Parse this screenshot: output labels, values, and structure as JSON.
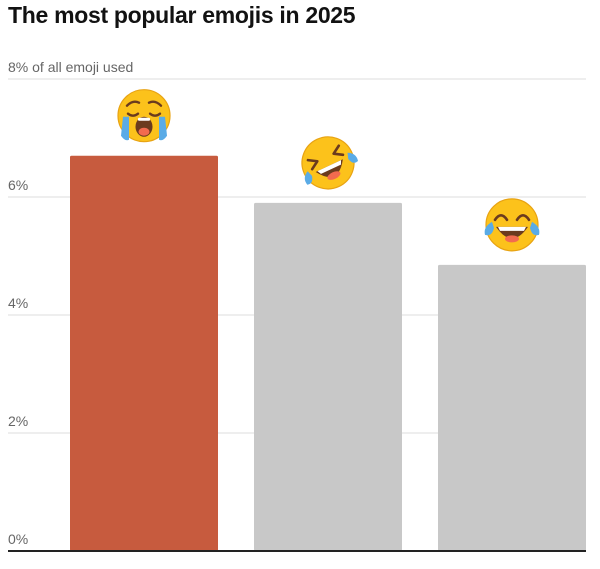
{
  "chart_data": {
    "type": "bar",
    "title": "The most popular emojis in 2025",
    "xlabel": "",
    "ylabel": "",
    "ylim": [
      0,
      8
    ],
    "y_ticks": [
      {
        "value": 0,
        "label": "0%"
      },
      {
        "value": 2,
        "label": "2%"
      },
      {
        "value": 4,
        "label": "4%"
      },
      {
        "value": 6,
        "label": "6%"
      },
      {
        "value": 8,
        "label": "8% of all emoji used"
      }
    ],
    "grid": true,
    "categories": [
      "loudly-crying-face",
      "rolling-on-the-floor-laughing",
      "face-with-tears-of-joy"
    ],
    "values": [
      6.7,
      5.9,
      4.85
    ],
    "highlight_index": 0,
    "colors": {
      "highlight": "#c75b3e",
      "default": "#c8c8c8",
      "grid": "#dddddd",
      "baseline": "#222222",
      "emoji_face": "#fcc21b",
      "emoji_outline": "#e8a313",
      "tears": "#5aabe6",
      "mouth": "#6b3b1e",
      "tongue": "#f26b4f"
    }
  }
}
